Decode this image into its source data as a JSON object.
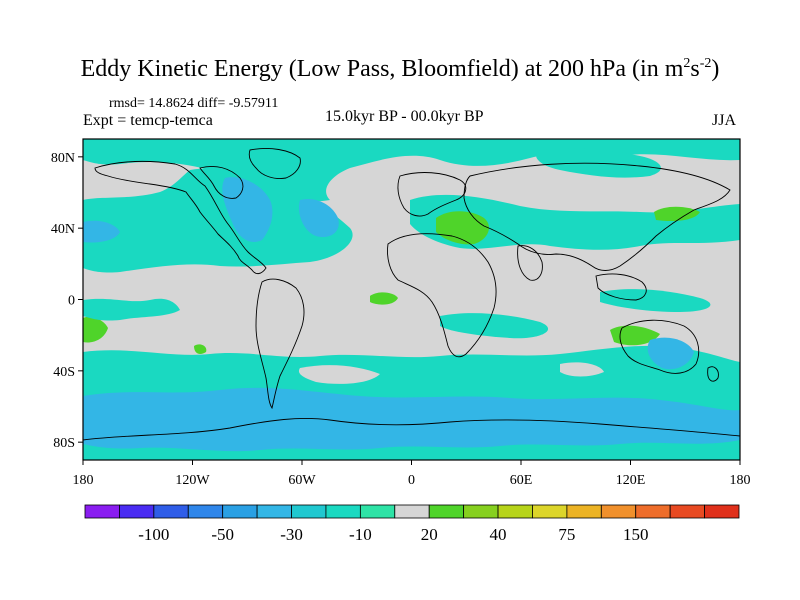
{
  "title": {
    "main": "Eddy Kinetic Energy (Low Pass, Bloomfield) at 200 hPa (in m",
    "sup1": "2",
    "mid": "s",
    "sup2": "-2",
    "end": ")"
  },
  "stats": "rmsd= 14.8624 diff= -9.57911",
  "expt": "Expt = temcp-temca",
  "center_label": "15.0kyr BP - 00.0kyr BP",
  "season": "JJA",
  "lat_labels": [
    {
      "lat": 80,
      "text": "80N"
    },
    {
      "lat": 40,
      "text": "40N"
    },
    {
      "lat": 0,
      "text": "0"
    },
    {
      "lat": -40,
      "text": "40S"
    },
    {
      "lat": -80,
      "text": "80S"
    }
  ],
  "lon_labels": [
    {
      "lon": -180,
      "text": "180"
    },
    {
      "lon": -120,
      "text": "120W"
    },
    {
      "lon": -60,
      "text": "60W"
    },
    {
      "lon": 0,
      "text": "0"
    },
    {
      "lon": 60,
      "text": "60E"
    },
    {
      "lon": 120,
      "text": "120E"
    },
    {
      "lon": 180,
      "text": "180"
    }
  ],
  "colorbar": {
    "colors": [
      "#8a1df0",
      "#4a2cf2",
      "#2f5de8",
      "#2f86ea",
      "#2aa0e4",
      "#33b6e6",
      "#20c8d0",
      "#1ad9c1",
      "#2ee3a6",
      "#d6d6d6",
      "#4fd42a",
      "#86d01f",
      "#b7d41a",
      "#dcd52a",
      "#ecb324",
      "#f0902c",
      "#ee6d2a",
      "#e84a22",
      "#e0301b"
    ],
    "labels": [
      {
        "boundary": 2,
        "text": "-100"
      },
      {
        "boundary": 4,
        "text": "-50"
      },
      {
        "boundary": 6,
        "text": "-30"
      },
      {
        "boundary": 8,
        "text": "-10"
      },
      {
        "boundary": 10,
        "text": "20"
      },
      {
        "boundary": 12,
        "text": "40"
      },
      {
        "boundary": 14,
        "text": "75"
      },
      {
        "boundary": 16,
        "text": "150"
      }
    ]
  },
  "fields": {
    "background": "#d6d6d6",
    "cyan": "#1ad9c1",
    "blue": "#33b6e6",
    "green": "#4fd42a"
  }
}
